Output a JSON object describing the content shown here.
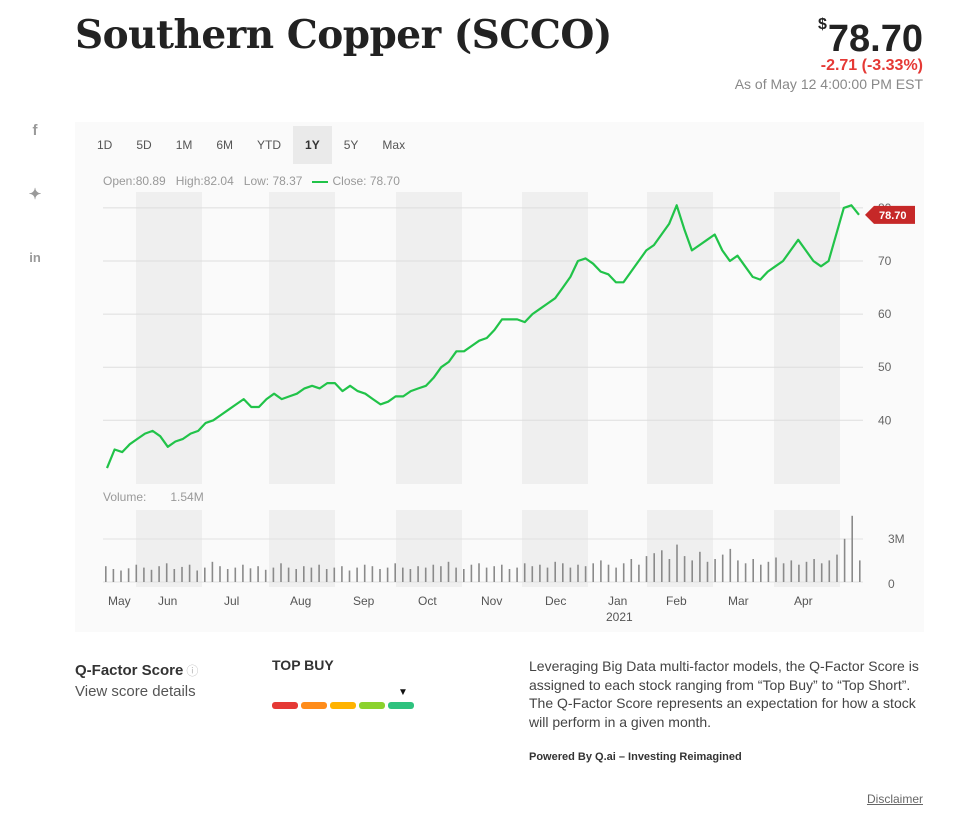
{
  "header": {
    "title": "Southern Copper (SCCO)",
    "currency_symbol": "$",
    "price": "78.70",
    "change": "-2.71 (-3.33%)",
    "as_of": "As of May 12 4:00:00 PM EST",
    "change_color": "#e53935"
  },
  "social": {
    "facebook": "f",
    "twitter": "✦",
    "linkedin": "in"
  },
  "tabs": [
    "1D",
    "5D",
    "1M",
    "6M",
    "YTD",
    "1Y",
    "5Y",
    "Max"
  ],
  "active_tab": "1Y",
  "ohlc": {
    "open": "Open:80.89",
    "high": "High:82.04",
    "low": "Low: 78.37",
    "close": "Close: 78.70"
  },
  "volume": {
    "label": "Volume:",
    "value": "1.54M"
  },
  "chart_data": {
    "type": "line",
    "line_color": "#21c349",
    "x_labels": [
      "May",
      "Jun",
      "Jul",
      "Aug",
      "Sep",
      "Oct",
      "Nov",
      "Dec",
      "Jan",
      "Feb",
      "Mar",
      "Apr"
    ],
    "year_label": "2021",
    "y_ticks": [
      "40",
      "50",
      "60",
      "70",
      "80"
    ],
    "ylim": [
      28,
      83
    ],
    "last_price_label": "78.70",
    "series": [
      {
        "values": [
          31,
          34.5,
          34,
          35.5,
          36.5,
          37.5,
          38,
          37,
          35,
          36,
          36.5,
          37.5,
          38,
          39.5,
          40,
          41,
          42,
          43,
          44,
          42.5,
          42.5,
          44,
          45,
          44,
          44.5,
          45,
          46,
          46.5,
          46,
          47,
          47,
          45.5,
          46.5,
          45.5,
          45,
          44,
          43,
          43.5,
          44.5,
          44.5,
          45.5,
          46,
          46.5,
          48,
          50,
          51,
          53,
          53,
          54,
          55,
          55.5,
          57,
          59,
          59,
          59,
          58.5,
          60,
          61,
          62,
          63,
          65,
          67,
          70,
          70.5,
          69.5,
          68,
          67.5,
          66,
          66,
          68,
          70,
          72,
          73,
          75,
          77,
          80.5,
          76,
          72,
          73,
          74,
          75,
          72,
          70,
          71,
          69,
          67,
          66.5,
          68,
          69,
          70,
          72,
          74,
          72,
          70,
          69,
          70,
          75,
          80,
          80.5,
          78.7
        ]
      }
    ],
    "volume_ylabels": [
      "3M",
      "0"
    ],
    "volume_values": [
      1.1,
      0.9,
      0.8,
      0.95,
      1.2,
      1.0,
      0.85,
      1.1,
      1.3,
      0.9,
      1.05,
      1.2,
      0.8,
      1.0,
      1.4,
      1.1,
      0.9,
      1.0,
      1.2,
      0.95,
      1.1,
      0.85,
      1.0,
      1.3,
      1.0,
      0.9,
      1.1,
      1.0,
      1.2,
      0.9,
      1.0,
      1.1,
      0.8,
      1.0,
      1.2,
      1.1,
      0.9,
      1.0,
      1.3,
      1.0,
      0.9,
      1.1,
      1.0,
      1.2,
      1.1,
      1.4,
      1.0,
      0.9,
      1.2,
      1.3,
      1.0,
      1.1,
      1.2,
      0.9,
      1.0,
      1.3,
      1.1,
      1.2,
      1.0,
      1.4,
      1.3,
      1.0,
      1.2,
      1.1,
      1.3,
      1.5,
      1.2,
      1.0,
      1.3,
      1.6,
      1.2,
      1.8,
      2.0,
      2.2,
      1.6,
      2.6,
      1.8,
      1.5,
      2.1,
      1.4,
      1.6,
      1.9,
      2.3,
      1.5,
      1.3,
      1.6,
      1.2,
      1.4,
      1.7,
      1.3,
      1.5,
      1.2,
      1.4,
      1.6,
      1.3,
      1.5,
      1.9,
      3.0,
      4.6,
      1.5
    ]
  },
  "qfactor": {
    "label": "Q-Factor Score",
    "info": "ⓘ",
    "link": "View score details",
    "rating": "TOP BUY",
    "arrow": "▼",
    "colors": [
      "#e53935",
      "#ff8c1a",
      "#ffb300",
      "#8bd22e",
      "#2ec27e"
    ],
    "description": "Leveraging Big Data multi-factor models, the Q-Factor Score is assigned to each stock ranging from “Top Buy” to “Top Short”. The Q-Factor Score represents an expectation for how a stock will perform in a given month.",
    "powered_by": "Powered By Q.ai – Investing Reimagined",
    "disclaimer": "Disclaimer"
  }
}
